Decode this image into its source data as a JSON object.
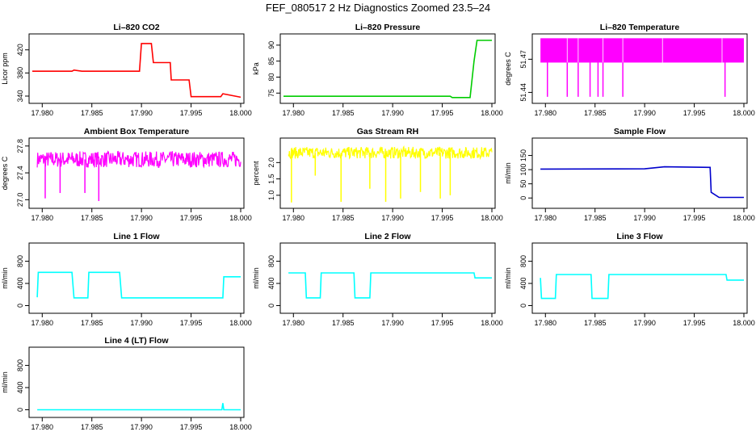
{
  "page": {
    "title": "FEF_080517  2 Hz Diagnostics Zoomed 23.5–24"
  },
  "colors": {
    "red": "#ff0000",
    "green": "#00cc00",
    "magenta": "#ff00ff",
    "yellow": "#ffff00",
    "blue": "#0000cc",
    "cyan": "#00ffff"
  },
  "chart_data": [
    {
      "type": "line",
      "title": "Li–820 CO2",
      "ylabel": "Licor ppm",
      "xlabel": "",
      "color": "red",
      "xlim": [
        17.979,
        18.0
      ],
      "ylim": [
        333,
        442
      ],
      "xticks": [
        "17.980",
        "17.985",
        "17.990",
        "17.995",
        "18.000"
      ],
      "yticks": [
        "340",
        "380",
        "420"
      ],
      "series": [
        {
          "x": [
            17.979,
            17.983,
            17.9832,
            17.984,
            17.9898,
            17.99,
            17.991,
            17.9912,
            17.9929,
            17.993,
            17.9948,
            17.995,
            17.998,
            17.9982,
            18.0
          ],
          "y": [
            383,
            383,
            385,
            383,
            383,
            431,
            431,
            398,
            398,
            368,
            368,
            339,
            339,
            344,
            338
          ]
        }
      ]
    },
    {
      "type": "line",
      "title": "Li–820 Pressure",
      "ylabel": "kPa",
      "xlabel": "",
      "color": "green",
      "xlim": [
        17.979,
        18.0
      ],
      "ylim": [
        72.8,
        92.5
      ],
      "xticks": [
        "17.980",
        "17.985",
        "17.990",
        "17.995",
        "18.000"
      ],
      "yticks": [
        "75",
        "80",
        "85",
        "90"
      ],
      "series": [
        {
          "x": [
            17.979,
            17.9958,
            17.996,
            17.9978,
            17.9982,
            17.9985,
            18.0
          ],
          "y": [
            74,
            74,
            73.6,
            73.6,
            85,
            91.5,
            91.5
          ]
        }
      ]
    },
    {
      "type": "line",
      "title": "Li–820 Temperature",
      "ylabel": "degrees C",
      "xlabel": "",
      "color": "magenta",
      "xlim": [
        17.979,
        18.0
      ],
      "ylim": [
        51.433,
        51.49
      ],
      "xticks": [
        "17.980",
        "17.985",
        "17.990",
        "17.995",
        "18.000"
      ],
      "yticks": [
        "51.44",
        "51.47"
      ],
      "band": [
        51.467,
        51.489
      ],
      "series": [
        {
          "spikes_x": [
            17.9802,
            17.9822,
            17.9833,
            17.9845,
            17.9853,
            17.9858,
            17.9878,
            17.9981
          ],
          "spikes_y": 51.436
        }
      ]
    },
    {
      "type": "line",
      "title": "Ambient Box Temperature",
      "ylabel": "degrees C",
      "xlabel": "",
      "color": "magenta",
      "xlim": [
        17.979,
        18.0
      ],
      "ylim": [
        26.92,
        27.87
      ],
      "xticks": [
        "17.980",
        "17.985",
        "17.990",
        "17.995",
        "18.000"
      ],
      "yticks": [
        "27.0",
        "27.4",
        "27.8"
      ],
      "series": [
        {
          "center": 27.6,
          "spread": 0.12,
          "dips_x": [
            17.9803,
            17.9818,
            17.9843,
            17.9857
          ],
          "dips_y": [
            27.02,
            27.1,
            27.1,
            26.98
          ]
        }
      ]
    },
    {
      "type": "line",
      "title": "Gas Stream RH",
      "ylabel": "percent",
      "xlabel": "",
      "color": "yellow",
      "xlim": [
        17.979,
        18.0
      ],
      "ylim": [
        0.7,
        2.65
      ],
      "xticks": [
        "17.980",
        "17.985",
        "17.990",
        "17.995",
        "18.000"
      ],
      "yticks": [
        "1.0",
        "1.5",
        "2.0"
      ],
      "series": [
        {
          "center": 2.3,
          "spread": 0.18,
          "dips_x": [
            17.9798,
            17.9822,
            17.9848,
            17.9877,
            17.9893,
            17.9908,
            17.9928,
            17.9948,
            17.9958
          ],
          "dips_y": [
            0.78,
            1.6,
            0.8,
            1.2,
            0.8,
            0.9,
            1.1,
            0.9,
            1.0
          ]
        }
      ]
    },
    {
      "type": "line",
      "title": "Sample Flow",
      "ylabel": "ml/min",
      "xlabel": "",
      "color": "blue",
      "xlim": [
        17.979,
        18.0
      ],
      "ylim": [
        -25,
        200
      ],
      "xticks": [
        "17.980",
        "17.985",
        "17.990",
        "17.995",
        "18.000"
      ],
      "yticks": [
        "0",
        "50",
        "100",
        "150"
      ],
      "series": [
        {
          "x": [
            17.9795,
            17.99,
            17.992,
            17.9966,
            17.9967,
            17.9975,
            18.0
          ],
          "y": [
            102,
            103,
            110,
            108,
            20,
            2,
            2
          ]
        }
      ]
    },
    {
      "type": "line",
      "title": "Line 1 Flow",
      "ylabel": "ml/min",
      "xlabel": "",
      "color": "cyan",
      "xlim": [
        17.979,
        18.0
      ],
      "ylim": [
        -80,
        1070
      ],
      "xticks": [
        "17.980",
        "17.985",
        "17.990",
        "17.995",
        "18.000"
      ],
      "yticks": [
        "0",
        "400",
        "800"
      ],
      "series": [
        {
          "x": [
            17.9795,
            17.9796,
            17.983,
            17.9832,
            17.9846,
            17.9847,
            17.9878,
            17.988,
            17.9982,
            17.9983,
            18.0
          ],
          "y": [
            150,
            600,
            600,
            140,
            140,
            600,
            600,
            140,
            140,
            520,
            520
          ]
        }
      ]
    },
    {
      "type": "line",
      "title": "Line 2 Flow",
      "ylabel": "ml/min",
      "xlabel": "",
      "color": "cyan",
      "xlim": [
        17.979,
        18.0
      ],
      "ylim": [
        -80,
        1070
      ],
      "xticks": [
        "17.980",
        "17.985",
        "17.990",
        "17.995",
        "18.000"
      ],
      "yticks": [
        "0",
        "400",
        "800"
      ],
      "series": [
        {
          "x": [
            17.9795,
            17.9812,
            17.9813,
            17.9827,
            17.9828,
            17.9861,
            17.9862,
            17.9877,
            17.9878,
            17.9982,
            17.9983,
            18.0
          ],
          "y": [
            590,
            590,
            140,
            140,
            590,
            590,
            140,
            140,
            590,
            590,
            500,
            500
          ]
        }
      ]
    },
    {
      "type": "line",
      "title": "Line 3 Flow",
      "ylabel": "ml/min",
      "xlabel": "",
      "color": "cyan",
      "xlim": [
        17.979,
        18.0
      ],
      "ylim": [
        -80,
        1070
      ],
      "xticks": [
        "17.980",
        "17.985",
        "17.990",
        "17.995",
        "18.000"
      ],
      "yticks": [
        "0",
        "400",
        "800"
      ],
      "series": [
        {
          "x": [
            17.9795,
            17.9796,
            17.981,
            17.9811,
            17.9846,
            17.9847,
            17.9863,
            17.9864,
            17.9982,
            17.9983,
            18.0
          ],
          "y": [
            500,
            130,
            130,
            560,
            560,
            130,
            130,
            560,
            560,
            460,
            460
          ]
        }
      ]
    },
    {
      "type": "line",
      "title": "Line 4 (LT) Flow",
      "ylabel": "ml/min",
      "xlabel": "",
      "color": "cyan",
      "xlim": [
        17.979,
        18.0
      ],
      "ylim": [
        -80,
        1070
      ],
      "xticks": [
        "17.980",
        "17.985",
        "17.990",
        "17.995",
        "18.000"
      ],
      "yticks": [
        "0",
        "400",
        "800"
      ],
      "series": [
        {
          "x": [
            17.9795,
            17.9981,
            17.9982,
            17.9983,
            18.0
          ],
          "y": [
            0,
            0,
            120,
            0,
            0
          ]
        }
      ]
    }
  ]
}
